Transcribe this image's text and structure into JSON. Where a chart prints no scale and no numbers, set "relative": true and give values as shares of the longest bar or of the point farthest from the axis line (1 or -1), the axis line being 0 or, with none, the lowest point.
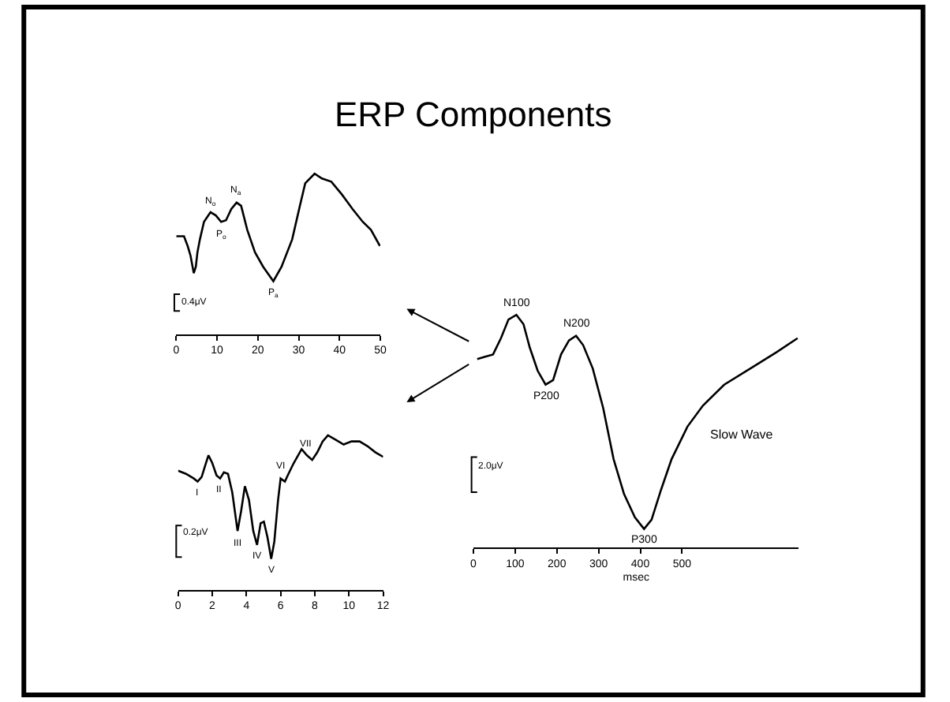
{
  "chart_data": [
    {
      "type": "line",
      "relative": true,
      "marker": "none",
      "line_style": "solid",
      "xlim": [
        0,
        50
      ],
      "xticks": [
        0,
        10,
        20,
        30,
        40,
        50
      ],
      "series": [
        {
          "color": "#000000",
          "x": [
            0,
            1.9,
            2.8,
            3.5,
            4.3,
            4.8,
            5.2,
            5.8,
            6.8,
            8.4,
            9.7,
            11.0,
            12.2,
            13.5,
            14.8,
            15.9,
            17.4,
            19.3,
            21.3,
            23.8,
            25.8,
            28.4,
            30.3,
            31.6,
            33.9,
            35.7,
            38.0,
            40.6,
            43.2,
            45.7,
            47.7,
            49.9
          ],
          "values": [
            0.61,
            0.61,
            0.55,
            0.49,
            0.38,
            0.42,
            0.51,
            0.59,
            0.7,
            0.76,
            0.74,
            0.7,
            0.71,
            0.78,
            0.82,
            0.8,
            0.65,
            0.51,
            0.42,
            0.33,
            0.42,
            0.59,
            0.8,
            0.94,
            1,
            0.97,
            0.95,
            0.87,
            0.78,
            0.7,
            0.65,
            0.55
          ]
        }
      ],
      "annotations": [
        {
          "text": "N$_{o}$",
          "x": 8.4,
          "y": 0.76
        },
        {
          "text": "P$_{o}$",
          "x": 11.0,
          "y": 0.7
        },
        {
          "text": "N$_{a}$",
          "x": 14.8,
          "y": 0.82
        },
        {
          "text": "P$_{a}$",
          "x": 23.8,
          "y": 0.33
        },
        "0.4μV"
      ]
    },
    {
      "type": "line",
      "relative": true,
      "marker": "none",
      "line_style": "solid",
      "xlim": [
        0,
        12
      ],
      "xticks": [
        0,
        2,
        4,
        6,
        8,
        10,
        12
      ],
      "series": [
        {
          "color": "#000000",
          "x": [
            0,
            0.46,
            0.92,
            1.14,
            1.38,
            1.63,
            1.78,
            2.0,
            2.25,
            2.46,
            2.68,
            2.92,
            3.17,
            3.48,
            3.69,
            3.91,
            4.15,
            4.4,
            4.62,
            4.83,
            5.02,
            5.23,
            5.45,
            5.63,
            5.85,
            6.0,
            6.25,
            6.46,
            6.77,
            7.23,
            7.54,
            7.85,
            8.15,
            8.46,
            8.77,
            9.23,
            9.69,
            10.15,
            10.62,
            11.08,
            11.54,
            12.0
          ],
          "values": [
            0.77,
            0.75,
            0.72,
            0.7,
            0.73,
            0.82,
            0.87,
            0.82,
            0.74,
            0.72,
            0.76,
            0.75,
            0.63,
            0.38,
            0.51,
            0.67,
            0.58,
            0.38,
            0.29,
            0.43,
            0.44,
            0.34,
            0.2,
            0.31,
            0.58,
            0.72,
            0.7,
            0.75,
            0.82,
            0.91,
            0.87,
            0.84,
            0.89,
            0.96,
            1,
            0.97,
            0.94,
            0.96,
            0.96,
            0.93,
            0.89,
            0.86
          ]
        }
      ],
      "annotations": [
        {
          "text": "I",
          "x": 1.14,
          "y": 0.7
        },
        {
          "text": "II",
          "x": 2.46,
          "y": 0.72
        },
        {
          "text": "III",
          "x": 3.48,
          "y": 0.38
        },
        {
          "text": "IV",
          "x": 4.62,
          "y": 0.29
        },
        {
          "text": "V",
          "x": 5.45,
          "y": 0.2
        },
        {
          "text": "VI",
          "x": 6.0,
          "y": 0.72
        },
        {
          "text": "VII",
          "x": 7.54,
          "y": 0.87
        },
        "0.2μV"
      ]
    },
    {
      "type": "line",
      "title": "ERP Components",
      "relative": true,
      "marker": "none",
      "line_style": "solid",
      "xlim": [
        0,
        780
      ],
      "xticks": [
        0,
        100,
        200,
        300,
        400,
        500
      ],
      "xlabel": "msec",
      "series": [
        {
          "color": "#000000",
          "x": [
            9,
            28,
            47,
            66,
            84,
            103,
            120,
            135,
            154,
            173,
            191,
            210,
            229,
            246,
            263,
            286,
            311,
            336,
            361,
            387,
            409,
            427,
            450,
            475,
            513,
            550,
            601,
            664,
            727,
            777
          ],
          "values": [
            0.81,
            0.82,
            0.83,
            0.9,
            0.98,
            1,
            0.96,
            0.86,
            0.76,
            0.7,
            0.72,
            0.83,
            0.89,
            0.91,
            0.87,
            0.77,
            0.6,
            0.38,
            0.23,
            0.13,
            0.08,
            0.12,
            0.25,
            0.38,
            0.52,
            0.61,
            0.7,
            0.77,
            0.84,
            0.9
          ]
        }
      ],
      "annotations": [
        {
          "text": "N100",
          "x": 103,
          "y": 1
        },
        {
          "text": "P200",
          "x": 173,
          "y": 0.7
        },
        {
          "text": "N200",
          "x": 246,
          "y": 0.91
        },
        {
          "text": "P300",
          "x": 409,
          "y": 0.08
        },
        "Slow Wave",
        "2.0μV"
      ]
    }
  ]
}
